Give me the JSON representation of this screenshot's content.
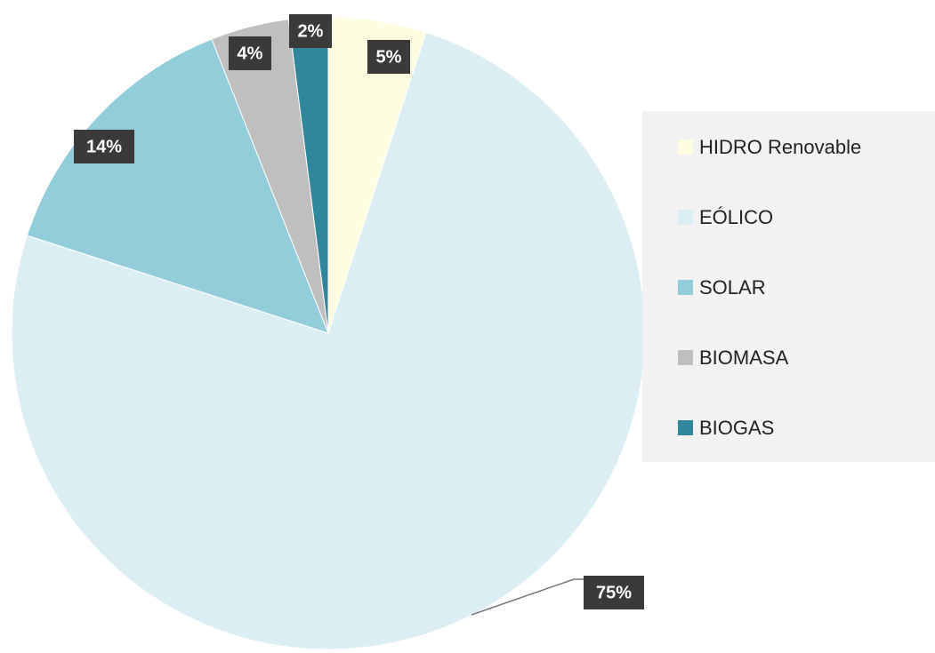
{
  "chart_data": {
    "type": "pie",
    "categories": [
      "HIDRO Renovable",
      "EÓLICO",
      "SOLAR",
      "BIOMASA",
      "BIOGAS"
    ],
    "values": [
      5,
      75,
      14,
      4,
      2
    ],
    "value_labels": [
      "5%",
      "75%",
      "14%",
      "4%",
      "2%"
    ],
    "colors": [
      "#fefde0",
      "#daeef3",
      "#92cddc",
      "#bfbfbf",
      "#31859c"
    ],
    "legend": "right"
  }
}
